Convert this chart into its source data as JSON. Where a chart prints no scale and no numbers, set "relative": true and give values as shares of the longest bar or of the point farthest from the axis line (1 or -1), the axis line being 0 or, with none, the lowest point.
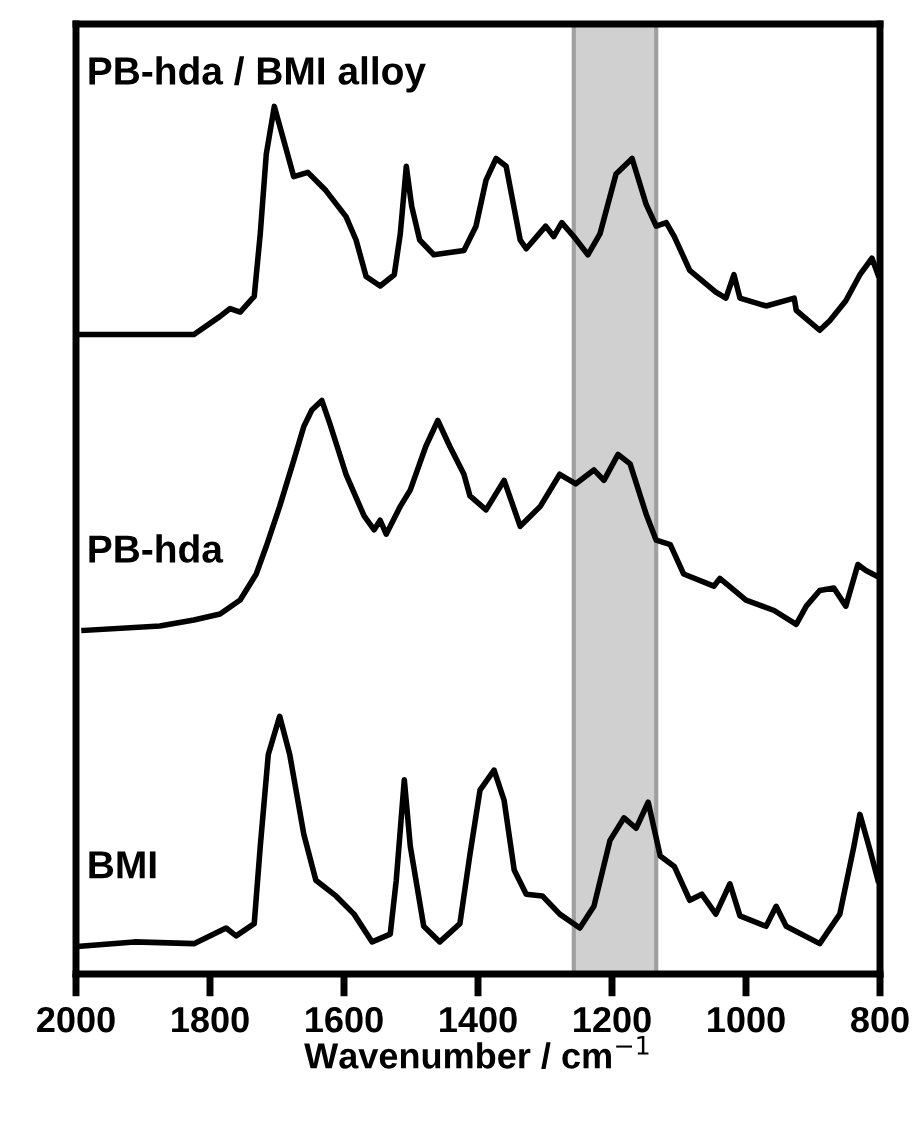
{
  "chart_data": {
    "type": "line",
    "relative": true,
    "xlabel": "Wavenumber / cm$^{−1}$",
    "xlim": [
      2000,
      800
    ],
    "xticks": [
      2000,
      1800,
      1600,
      1400,
      1200,
      1000,
      800
    ],
    "grid": false,
    "legend": false,
    "marker": "none",
    "line_style": "solid",
    "bands": [
      {
        "axis": "x",
        "from": 1257,
        "to": 1134,
        "color": "#d0d0d0"
      }
    ],
    "series": [
      {
        "name": "PB-hda / BMI alloy",
        "color": "#000000",
        "x": [
          1994,
          1824,
          1785,
          1770,
          1755,
          1734,
          1725,
          1716,
          1704,
          1690,
          1675,
          1654,
          1627,
          1597,
          1582,
          1567,
          1546,
          1525,
          1516,
          1507,
          1499,
          1487,
          1466,
          1421,
          1403,
          1388,
          1373,
          1358,
          1337,
          1328,
          1299,
          1287,
          1275,
          1257,
          1236,
          1218,
          1194,
          1170,
          1149,
          1134,
          1119,
          1107,
          1084,
          1045,
          1030,
          1018,
          1009,
          970,
          928,
          925,
          890,
          875,
          851,
          830,
          812,
          803
        ],
        "values": [
          0.737,
          0.737,
          0.758,
          0.767,
          0.763,
          0.781,
          0.853,
          0.945,
          1.0,
          0.961,
          0.919,
          0.924,
          0.903,
          0.873,
          0.846,
          0.804,
          0.793,
          0.806,
          0.853,
          0.931,
          0.885,
          0.846,
          0.829,
          0.834,
          0.862,
          0.915,
          0.94,
          0.931,
          0.846,
          0.836,
          0.862,
          0.85,
          0.866,
          0.85,
          0.829,
          0.853,
          0.922,
          0.94,
          0.887,
          0.862,
          0.866,
          0.85,
          0.811,
          0.786,
          0.779,
          0.806,
          0.779,
          0.77,
          0.779,
          0.765,
          0.742,
          0.753,
          0.776,
          0.806,
          0.825,
          0.806
        ]
      },
      {
        "name": "PB-hda",
        "color": "#000000",
        "x": [
          1988,
          1875,
          1824,
          1785,
          1755,
          1731,
          1716,
          1696,
          1675,
          1660,
          1648,
          1633,
          1621,
          1597,
          1570,
          1555,
          1546,
          1537,
          1516,
          1501,
          1478,
          1460,
          1442,
          1421,
          1412,
          1388,
          1361,
          1337,
          1307,
          1278,
          1254,
          1227,
          1212,
          1191,
          1173,
          1149,
          1134,
          1113,
          1093,
          1048,
          1039,
          1000,
          958,
          925,
          910,
          890,
          869,
          851,
          833,
          821,
          806
        ],
        "values": [
          0.396,
          0.401,
          0.408,
          0.415,
          0.431,
          0.461,
          0.493,
          0.539,
          0.592,
          0.631,
          0.65,
          0.661,
          0.634,
          0.576,
          0.528,
          0.512,
          0.523,
          0.507,
          0.539,
          0.558,
          0.608,
          0.638,
          0.608,
          0.576,
          0.551,
          0.535,
          0.569,
          0.516,
          0.539,
          0.576,
          0.565,
          0.581,
          0.569,
          0.599,
          0.588,
          0.53,
          0.5,
          0.495,
          0.461,
          0.447,
          0.456,
          0.431,
          0.419,
          0.403,
          0.424,
          0.442,
          0.445,
          0.424,
          0.472,
          0.465,
          0.459
        ]
      },
      {
        "name": "BMI",
        "color": "#000000",
        "x": [
          1994,
          1913,
          1824,
          1776,
          1761,
          1734,
          1725,
          1713,
          1696,
          1681,
          1660,
          1642,
          1612,
          1585,
          1558,
          1531,
          1522,
          1510,
          1501,
          1481,
          1457,
          1427,
          1412,
          1397,
          1376,
          1361,
          1346,
          1328,
          1304,
          1278,
          1248,
          1227,
          1203,
          1182,
          1164,
          1146,
          1128,
          1107,
          1084,
          1066,
          1045,
          1024,
          1009,
          970,
          955,
          940,
          890,
          860,
          839,
          830,
          815,
          803
        ],
        "values": [
          0.032,
          0.037,
          0.035,
          0.053,
          0.044,
          0.058,
          0.147,
          0.253,
          0.297,
          0.253,
          0.161,
          0.108,
          0.09,
          0.069,
          0.037,
          0.046,
          0.108,
          0.224,
          0.147,
          0.055,
          0.037,
          0.058,
          0.138,
          0.212,
          0.235,
          0.2,
          0.12,
          0.092,
          0.09,
          0.069,
          0.053,
          0.078,
          0.154,
          0.18,
          0.168,
          0.198,
          0.136,
          0.124,
          0.085,
          0.092,
          0.069,
          0.104,
          0.067,
          0.055,
          0.078,
          0.055,
          0.035,
          0.069,
          0.147,
          0.184,
          0.143,
          0.108
        ]
      }
    ]
  }
}
